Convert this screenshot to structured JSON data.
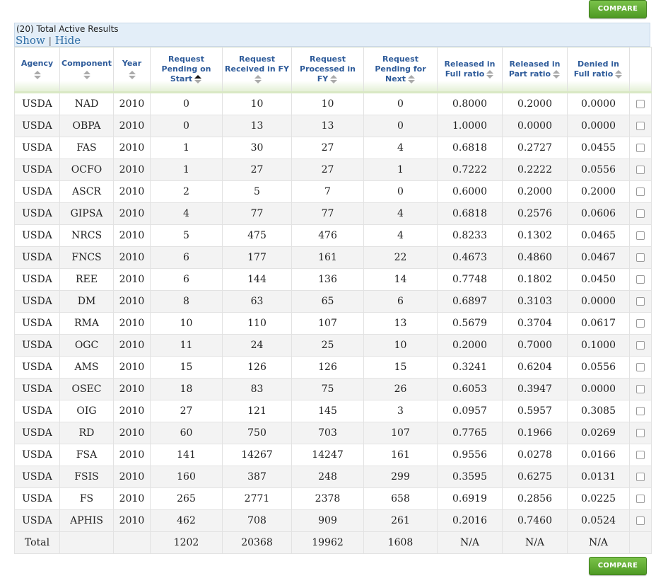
{
  "compare_label": "COMPARE",
  "results": {
    "count_text": "(20) Total Active Results",
    "show_label": "Show",
    "separator": "|",
    "hide_label": "Hide"
  },
  "columns": [
    {
      "key": "agency",
      "label": "Agency"
    },
    {
      "key": "component",
      "label": "Component"
    },
    {
      "key": "year",
      "label": "Year"
    },
    {
      "key": "pending_start",
      "label": "Request Pending on Start"
    },
    {
      "key": "received",
      "label": "Request Received in FY"
    },
    {
      "key": "processed",
      "label": "Request Processed in FY"
    },
    {
      "key": "pending_next",
      "label": "Request Pending for Next"
    },
    {
      "key": "released_full",
      "label": "Released in Full ratio"
    },
    {
      "key": "released_part",
      "label": "Released in Part ratio"
    },
    {
      "key": "denied_full",
      "label": "Denied in Full ratio"
    }
  ],
  "active_sort_column": "pending_start",
  "rows": [
    [
      "USDA",
      "NAD",
      "2010",
      "0",
      "10",
      "10",
      "0",
      "0.8000",
      "0.2000",
      "0.0000"
    ],
    [
      "USDA",
      "OBPA",
      "2010",
      "0",
      "13",
      "13",
      "0",
      "1.0000",
      "0.0000",
      "0.0000"
    ],
    [
      "USDA",
      "FAS",
      "2010",
      "1",
      "30",
      "27",
      "4",
      "0.6818",
      "0.2727",
      "0.0455"
    ],
    [
      "USDA",
      "OCFO",
      "2010",
      "1",
      "27",
      "27",
      "1",
      "0.7222",
      "0.2222",
      "0.0556"
    ],
    [
      "USDA",
      "ASCR",
      "2010",
      "2",
      "5",
      "7",
      "0",
      "0.6000",
      "0.2000",
      "0.2000"
    ],
    [
      "USDA",
      "GIPSA",
      "2010",
      "4",
      "77",
      "77",
      "4",
      "0.6818",
      "0.2576",
      "0.0606"
    ],
    [
      "USDA",
      "NRCS",
      "2010",
      "5",
      "475",
      "476",
      "4",
      "0.8233",
      "0.1302",
      "0.0465"
    ],
    [
      "USDA",
      "FNCS",
      "2010",
      "6",
      "177",
      "161",
      "22",
      "0.4673",
      "0.4860",
      "0.0467"
    ],
    [
      "USDA",
      "REE",
      "2010",
      "6",
      "144",
      "136",
      "14",
      "0.7748",
      "0.1802",
      "0.0450"
    ],
    [
      "USDA",
      "DM",
      "2010",
      "8",
      "63",
      "65",
      "6",
      "0.6897",
      "0.3103",
      "0.0000"
    ],
    [
      "USDA",
      "RMA",
      "2010",
      "10",
      "110",
      "107",
      "13",
      "0.5679",
      "0.3704",
      "0.0617"
    ],
    [
      "USDA",
      "OGC",
      "2010",
      "11",
      "24",
      "25",
      "10",
      "0.2000",
      "0.7000",
      "0.1000"
    ],
    [
      "USDA",
      "AMS",
      "2010",
      "15",
      "126",
      "126",
      "15",
      "0.3241",
      "0.6204",
      "0.0556"
    ],
    [
      "USDA",
      "OSEC",
      "2010",
      "18",
      "83",
      "75",
      "26",
      "0.6053",
      "0.3947",
      "0.0000"
    ],
    [
      "USDA",
      "OIG",
      "2010",
      "27",
      "121",
      "145",
      "3",
      "0.0957",
      "0.5957",
      "0.3085"
    ],
    [
      "USDA",
      "RD",
      "2010",
      "60",
      "750",
      "703",
      "107",
      "0.7765",
      "0.1966",
      "0.0269"
    ],
    [
      "USDA",
      "FSA",
      "2010",
      "141",
      "14267",
      "14247",
      "161",
      "0.9556",
      "0.0278",
      "0.0166"
    ],
    [
      "USDA",
      "FSIS",
      "2010",
      "160",
      "387",
      "248",
      "299",
      "0.3595",
      "0.6275",
      "0.0131"
    ],
    [
      "USDA",
      "FS",
      "2010",
      "265",
      "2771",
      "2378",
      "658",
      "0.6919",
      "0.2856",
      "0.0225"
    ],
    [
      "USDA",
      "APHIS",
      "2010",
      "462",
      "708",
      "909",
      "261",
      "0.2016",
      "0.7460",
      "0.0524"
    ]
  ],
  "total": [
    "Total",
    "",
    "",
    "1202",
    "20368",
    "19962",
    "1608",
    "N/A",
    "N/A",
    "N/A"
  ]
}
